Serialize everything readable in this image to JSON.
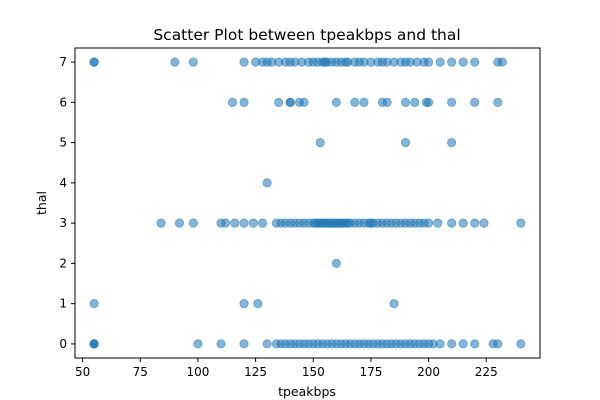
{
  "chart_data": {
    "type": "scatter",
    "title": "Scatter Plot between tpeakbps and thal",
    "xlabel": "tpeakbps",
    "ylabel": "thal",
    "xlim": [
      46.7,
      248.3
    ],
    "ylim": [
      -0.35,
      7.35
    ],
    "xticks": [
      50,
      75,
      100,
      125,
      150,
      175,
      200,
      225
    ],
    "yticks": [
      0,
      1,
      2,
      3,
      4,
      5,
      6,
      7
    ],
    "marker_color": "#1f77b4",
    "marker_alpha": 0.55,
    "grid": false,
    "points": [
      {
        "x": 55,
        "y": 7
      },
      {
        "x": 55,
        "y": 7
      },
      {
        "x": 90,
        "y": 7
      },
      {
        "x": 98,
        "y": 7
      },
      {
        "x": 120,
        "y": 7
      },
      {
        "x": 125,
        "y": 7
      },
      {
        "x": 128,
        "y": 7
      },
      {
        "x": 130,
        "y": 7
      },
      {
        "x": 132,
        "y": 7
      },
      {
        "x": 135,
        "y": 7
      },
      {
        "x": 138,
        "y": 7
      },
      {
        "x": 140,
        "y": 7
      },
      {
        "x": 142,
        "y": 7
      },
      {
        "x": 145,
        "y": 7
      },
      {
        "x": 148,
        "y": 7
      },
      {
        "x": 150,
        "y": 7
      },
      {
        "x": 152,
        "y": 7
      },
      {
        "x": 154,
        "y": 7
      },
      {
        "x": 155,
        "y": 7
      },
      {
        "x": 156,
        "y": 7
      },
      {
        "x": 158,
        "y": 7
      },
      {
        "x": 160,
        "y": 7
      },
      {
        "x": 162,
        "y": 7
      },
      {
        "x": 164,
        "y": 7
      },
      {
        "x": 165,
        "y": 7
      },
      {
        "x": 168,
        "y": 7
      },
      {
        "x": 170,
        "y": 7
      },
      {
        "x": 172,
        "y": 7
      },
      {
        "x": 175,
        "y": 7
      },
      {
        "x": 178,
        "y": 7
      },
      {
        "x": 180,
        "y": 7
      },
      {
        "x": 182,
        "y": 7
      },
      {
        "x": 185,
        "y": 7
      },
      {
        "x": 188,
        "y": 7
      },
      {
        "x": 190,
        "y": 7
      },
      {
        "x": 192,
        "y": 7
      },
      {
        "x": 195,
        "y": 7
      },
      {
        "x": 198,
        "y": 7
      },
      {
        "x": 200,
        "y": 7
      },
      {
        "x": 205,
        "y": 7
      },
      {
        "x": 210,
        "y": 7
      },
      {
        "x": 215,
        "y": 7
      },
      {
        "x": 220,
        "y": 7
      },
      {
        "x": 230,
        "y": 7
      },
      {
        "x": 232,
        "y": 7
      },
      {
        "x": 115,
        "y": 6
      },
      {
        "x": 120,
        "y": 6
      },
      {
        "x": 135,
        "y": 6
      },
      {
        "x": 140,
        "y": 6
      },
      {
        "x": 140,
        "y": 6
      },
      {
        "x": 144,
        "y": 6
      },
      {
        "x": 146,
        "y": 6
      },
      {
        "x": 160,
        "y": 6
      },
      {
        "x": 168,
        "y": 6
      },
      {
        "x": 172,
        "y": 6
      },
      {
        "x": 180,
        "y": 6
      },
      {
        "x": 182,
        "y": 6
      },
      {
        "x": 190,
        "y": 6
      },
      {
        "x": 194,
        "y": 6
      },
      {
        "x": 199,
        "y": 6
      },
      {
        "x": 200,
        "y": 6
      },
      {
        "x": 210,
        "y": 6
      },
      {
        "x": 220,
        "y": 6
      },
      {
        "x": 230,
        "y": 6
      },
      {
        "x": 153,
        "y": 5
      },
      {
        "x": 190,
        "y": 5
      },
      {
        "x": 210,
        "y": 5
      },
      {
        "x": 130,
        "y": 4
      },
      {
        "x": 84,
        "y": 3
      },
      {
        "x": 92,
        "y": 3
      },
      {
        "x": 98,
        "y": 3
      },
      {
        "x": 110,
        "y": 3
      },
      {
        "x": 112,
        "y": 3
      },
      {
        "x": 116,
        "y": 3
      },
      {
        "x": 120,
        "y": 3
      },
      {
        "x": 124,
        "y": 3
      },
      {
        "x": 128,
        "y": 3
      },
      {
        "x": 134,
        "y": 3
      },
      {
        "x": 136,
        "y": 3
      },
      {
        "x": 138,
        "y": 3
      },
      {
        "x": 140,
        "y": 3
      },
      {
        "x": 142,
        "y": 3
      },
      {
        "x": 144,
        "y": 3
      },
      {
        "x": 146,
        "y": 3
      },
      {
        "x": 148,
        "y": 3
      },
      {
        "x": 150,
        "y": 3
      },
      {
        "x": 151,
        "y": 3
      },
      {
        "x": 152,
        "y": 3
      },
      {
        "x": 153,
        "y": 3
      },
      {
        "x": 154,
        "y": 3
      },
      {
        "x": 155,
        "y": 3
      },
      {
        "x": 156,
        "y": 3
      },
      {
        "x": 157,
        "y": 3
      },
      {
        "x": 158,
        "y": 3
      },
      {
        "x": 159,
        "y": 3
      },
      {
        "x": 160,
        "y": 3
      },
      {
        "x": 161,
        "y": 3
      },
      {
        "x": 162,
        "y": 3
      },
      {
        "x": 163,
        "y": 3
      },
      {
        "x": 164,
        "y": 3
      },
      {
        "x": 165,
        "y": 3
      },
      {
        "x": 166,
        "y": 3
      },
      {
        "x": 168,
        "y": 3
      },
      {
        "x": 170,
        "y": 3
      },
      {
        "x": 172,
        "y": 3
      },
      {
        "x": 174,
        "y": 3
      },
      {
        "x": 175,
        "y": 3
      },
      {
        "x": 176,
        "y": 3
      },
      {
        "x": 178,
        "y": 3
      },
      {
        "x": 180,
        "y": 3
      },
      {
        "x": 182,
        "y": 3
      },
      {
        "x": 184,
        "y": 3
      },
      {
        "x": 186,
        "y": 3
      },
      {
        "x": 188,
        "y": 3
      },
      {
        "x": 190,
        "y": 3
      },
      {
        "x": 192,
        "y": 3
      },
      {
        "x": 194,
        "y": 3
      },
      {
        "x": 196,
        "y": 3
      },
      {
        "x": 198,
        "y": 3
      },
      {
        "x": 200,
        "y": 3
      },
      {
        "x": 204,
        "y": 3
      },
      {
        "x": 210,
        "y": 3
      },
      {
        "x": 215,
        "y": 3
      },
      {
        "x": 220,
        "y": 3
      },
      {
        "x": 224,
        "y": 3
      },
      {
        "x": 240,
        "y": 3
      },
      {
        "x": 160,
        "y": 2
      },
      {
        "x": 55,
        "y": 1
      },
      {
        "x": 120,
        "y": 1
      },
      {
        "x": 126,
        "y": 1
      },
      {
        "x": 185,
        "y": 1
      },
      {
        "x": 55,
        "y": 0
      },
      {
        "x": 55,
        "y": 0
      },
      {
        "x": 55,
        "y": 0
      },
      {
        "x": 100,
        "y": 0
      },
      {
        "x": 110,
        "y": 0
      },
      {
        "x": 120,
        "y": 0
      },
      {
        "x": 130,
        "y": 0
      },
      {
        "x": 134,
        "y": 0
      },
      {
        "x": 136,
        "y": 0
      },
      {
        "x": 138,
        "y": 0
      },
      {
        "x": 140,
        "y": 0
      },
      {
        "x": 142,
        "y": 0
      },
      {
        "x": 144,
        "y": 0
      },
      {
        "x": 146,
        "y": 0
      },
      {
        "x": 148,
        "y": 0
      },
      {
        "x": 150,
        "y": 0
      },
      {
        "x": 152,
        "y": 0
      },
      {
        "x": 154,
        "y": 0
      },
      {
        "x": 156,
        "y": 0
      },
      {
        "x": 158,
        "y": 0
      },
      {
        "x": 160,
        "y": 0
      },
      {
        "x": 162,
        "y": 0
      },
      {
        "x": 164,
        "y": 0
      },
      {
        "x": 166,
        "y": 0
      },
      {
        "x": 168,
        "y": 0
      },
      {
        "x": 170,
        "y": 0
      },
      {
        "x": 172,
        "y": 0
      },
      {
        "x": 174,
        "y": 0
      },
      {
        "x": 176,
        "y": 0
      },
      {
        "x": 178,
        "y": 0
      },
      {
        "x": 180,
        "y": 0
      },
      {
        "x": 182,
        "y": 0
      },
      {
        "x": 184,
        "y": 0
      },
      {
        "x": 186,
        "y": 0
      },
      {
        "x": 188,
        "y": 0
      },
      {
        "x": 190,
        "y": 0
      },
      {
        "x": 192,
        "y": 0
      },
      {
        "x": 194,
        "y": 0
      },
      {
        "x": 196,
        "y": 0
      },
      {
        "x": 198,
        "y": 0
      },
      {
        "x": 200,
        "y": 0
      },
      {
        "x": 202,
        "y": 0
      },
      {
        "x": 205,
        "y": 0
      },
      {
        "x": 210,
        "y": 0
      },
      {
        "x": 215,
        "y": 0
      },
      {
        "x": 220,
        "y": 0
      },
      {
        "x": 228,
        "y": 0
      },
      {
        "x": 230,
        "y": 0
      },
      {
        "x": 240,
        "y": 0
      }
    ]
  }
}
